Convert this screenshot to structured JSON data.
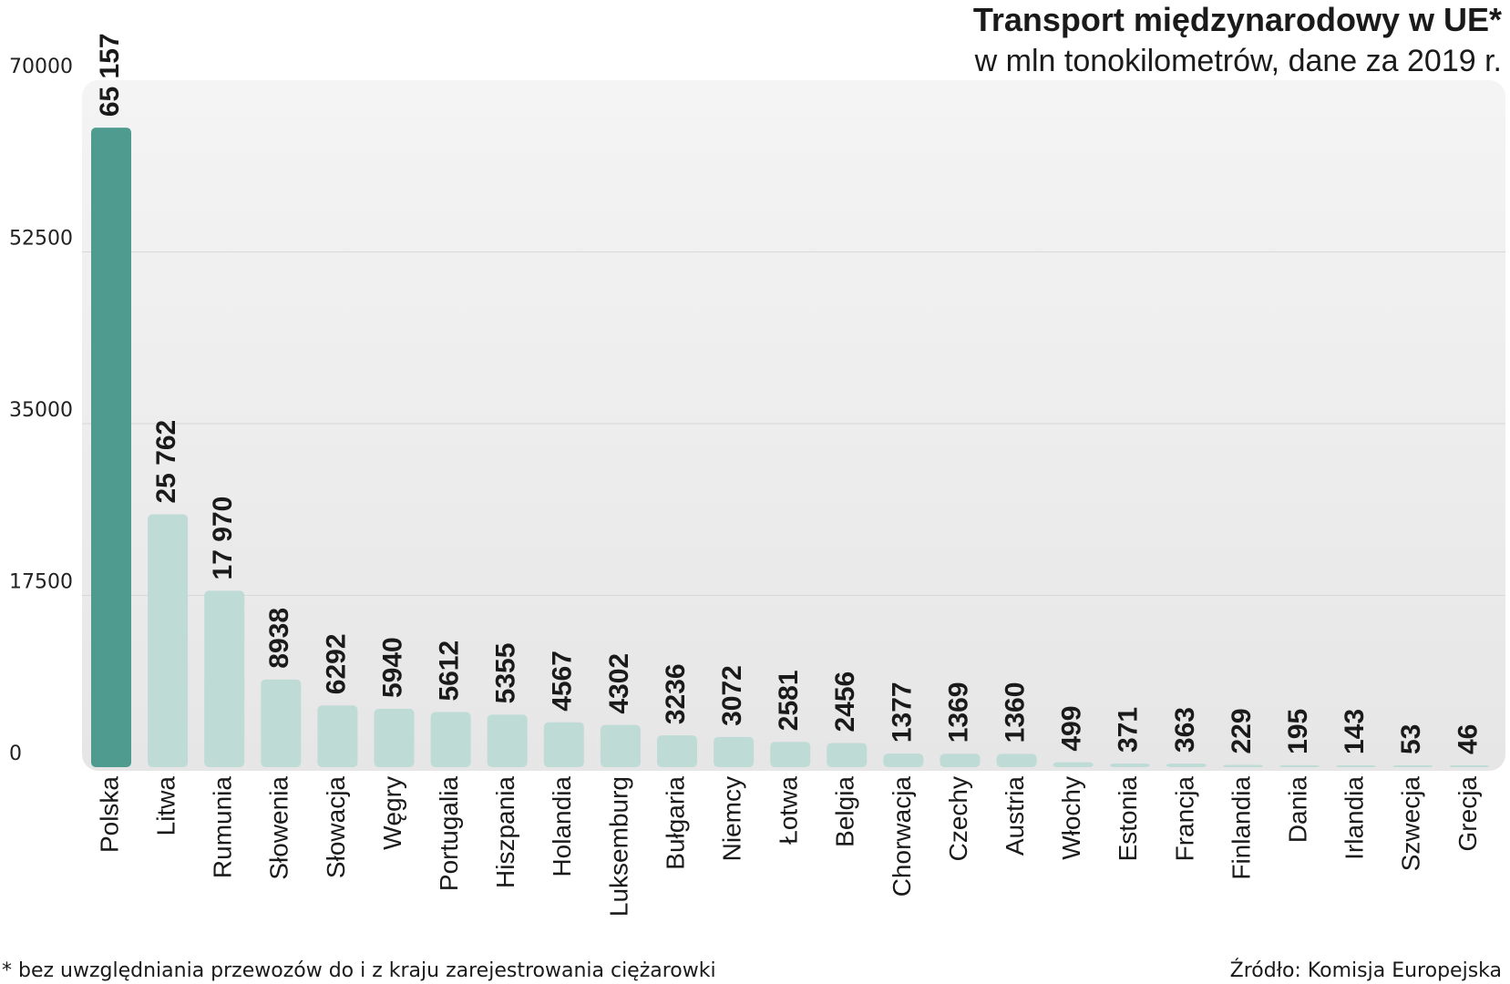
{
  "chart_data": {
    "type": "bar",
    "title": "Transport międzynarodowy w UE*",
    "subtitle": "w mln tonokilometrów, dane za 2019 r.",
    "categories": [
      "Polska",
      "Litwa",
      "Rumunia",
      "Słowenia",
      "Słowacja",
      "Węgry",
      "Portugalia",
      "Hiszpania",
      "Holandia",
      "Luksemburg",
      "Bułgaria",
      "Niemcy",
      "Łotwa",
      "Belgia",
      "Chorwacja",
      "Czechy",
      "Austria",
      "Włochy",
      "Estonia",
      "Francja",
      "Finlandia",
      "Dania",
      "Irlandia",
      "Szwecja",
      "Grecja"
    ],
    "values": [
      65157,
      25762,
      17970,
      8938,
      6292,
      5940,
      5612,
      5355,
      4567,
      4302,
      3236,
      3072,
      2581,
      2456,
      1377,
      1369,
      1360,
      499,
      371,
      363,
      229,
      195,
      143,
      53,
      46
    ],
    "value_labels": [
      "65 157",
      "25 762",
      "17 970",
      "8938",
      "6292",
      "5940",
      "5612",
      "5355",
      "4567",
      "4302",
      "3236",
      "3072",
      "2581",
      "2456",
      "1377",
      "1369",
      "1360",
      "499",
      "371",
      "363",
      "229",
      "195",
      "143",
      "53",
      "46"
    ],
    "yticks": [
      0,
      17500,
      35000,
      52500,
      70000
    ],
    "ytick_labels": [
      "0",
      "17500",
      "35000",
      "52500",
      "70000"
    ],
    "ylim": [
      0,
      70000
    ],
    "xlabel": "",
    "ylabel": "",
    "grid": true,
    "highlight_index": 0,
    "colors": {
      "highlight": "#4f9b8f",
      "bar": "#bfdbd5",
      "panel": "#ececec",
      "grid": "#d8d8d8"
    },
    "footnote": "* bez uwzględniania przewozów do i z kraju zarejestrowania ciężarowki",
    "source": "Źródło: Komisja Europejska"
  }
}
